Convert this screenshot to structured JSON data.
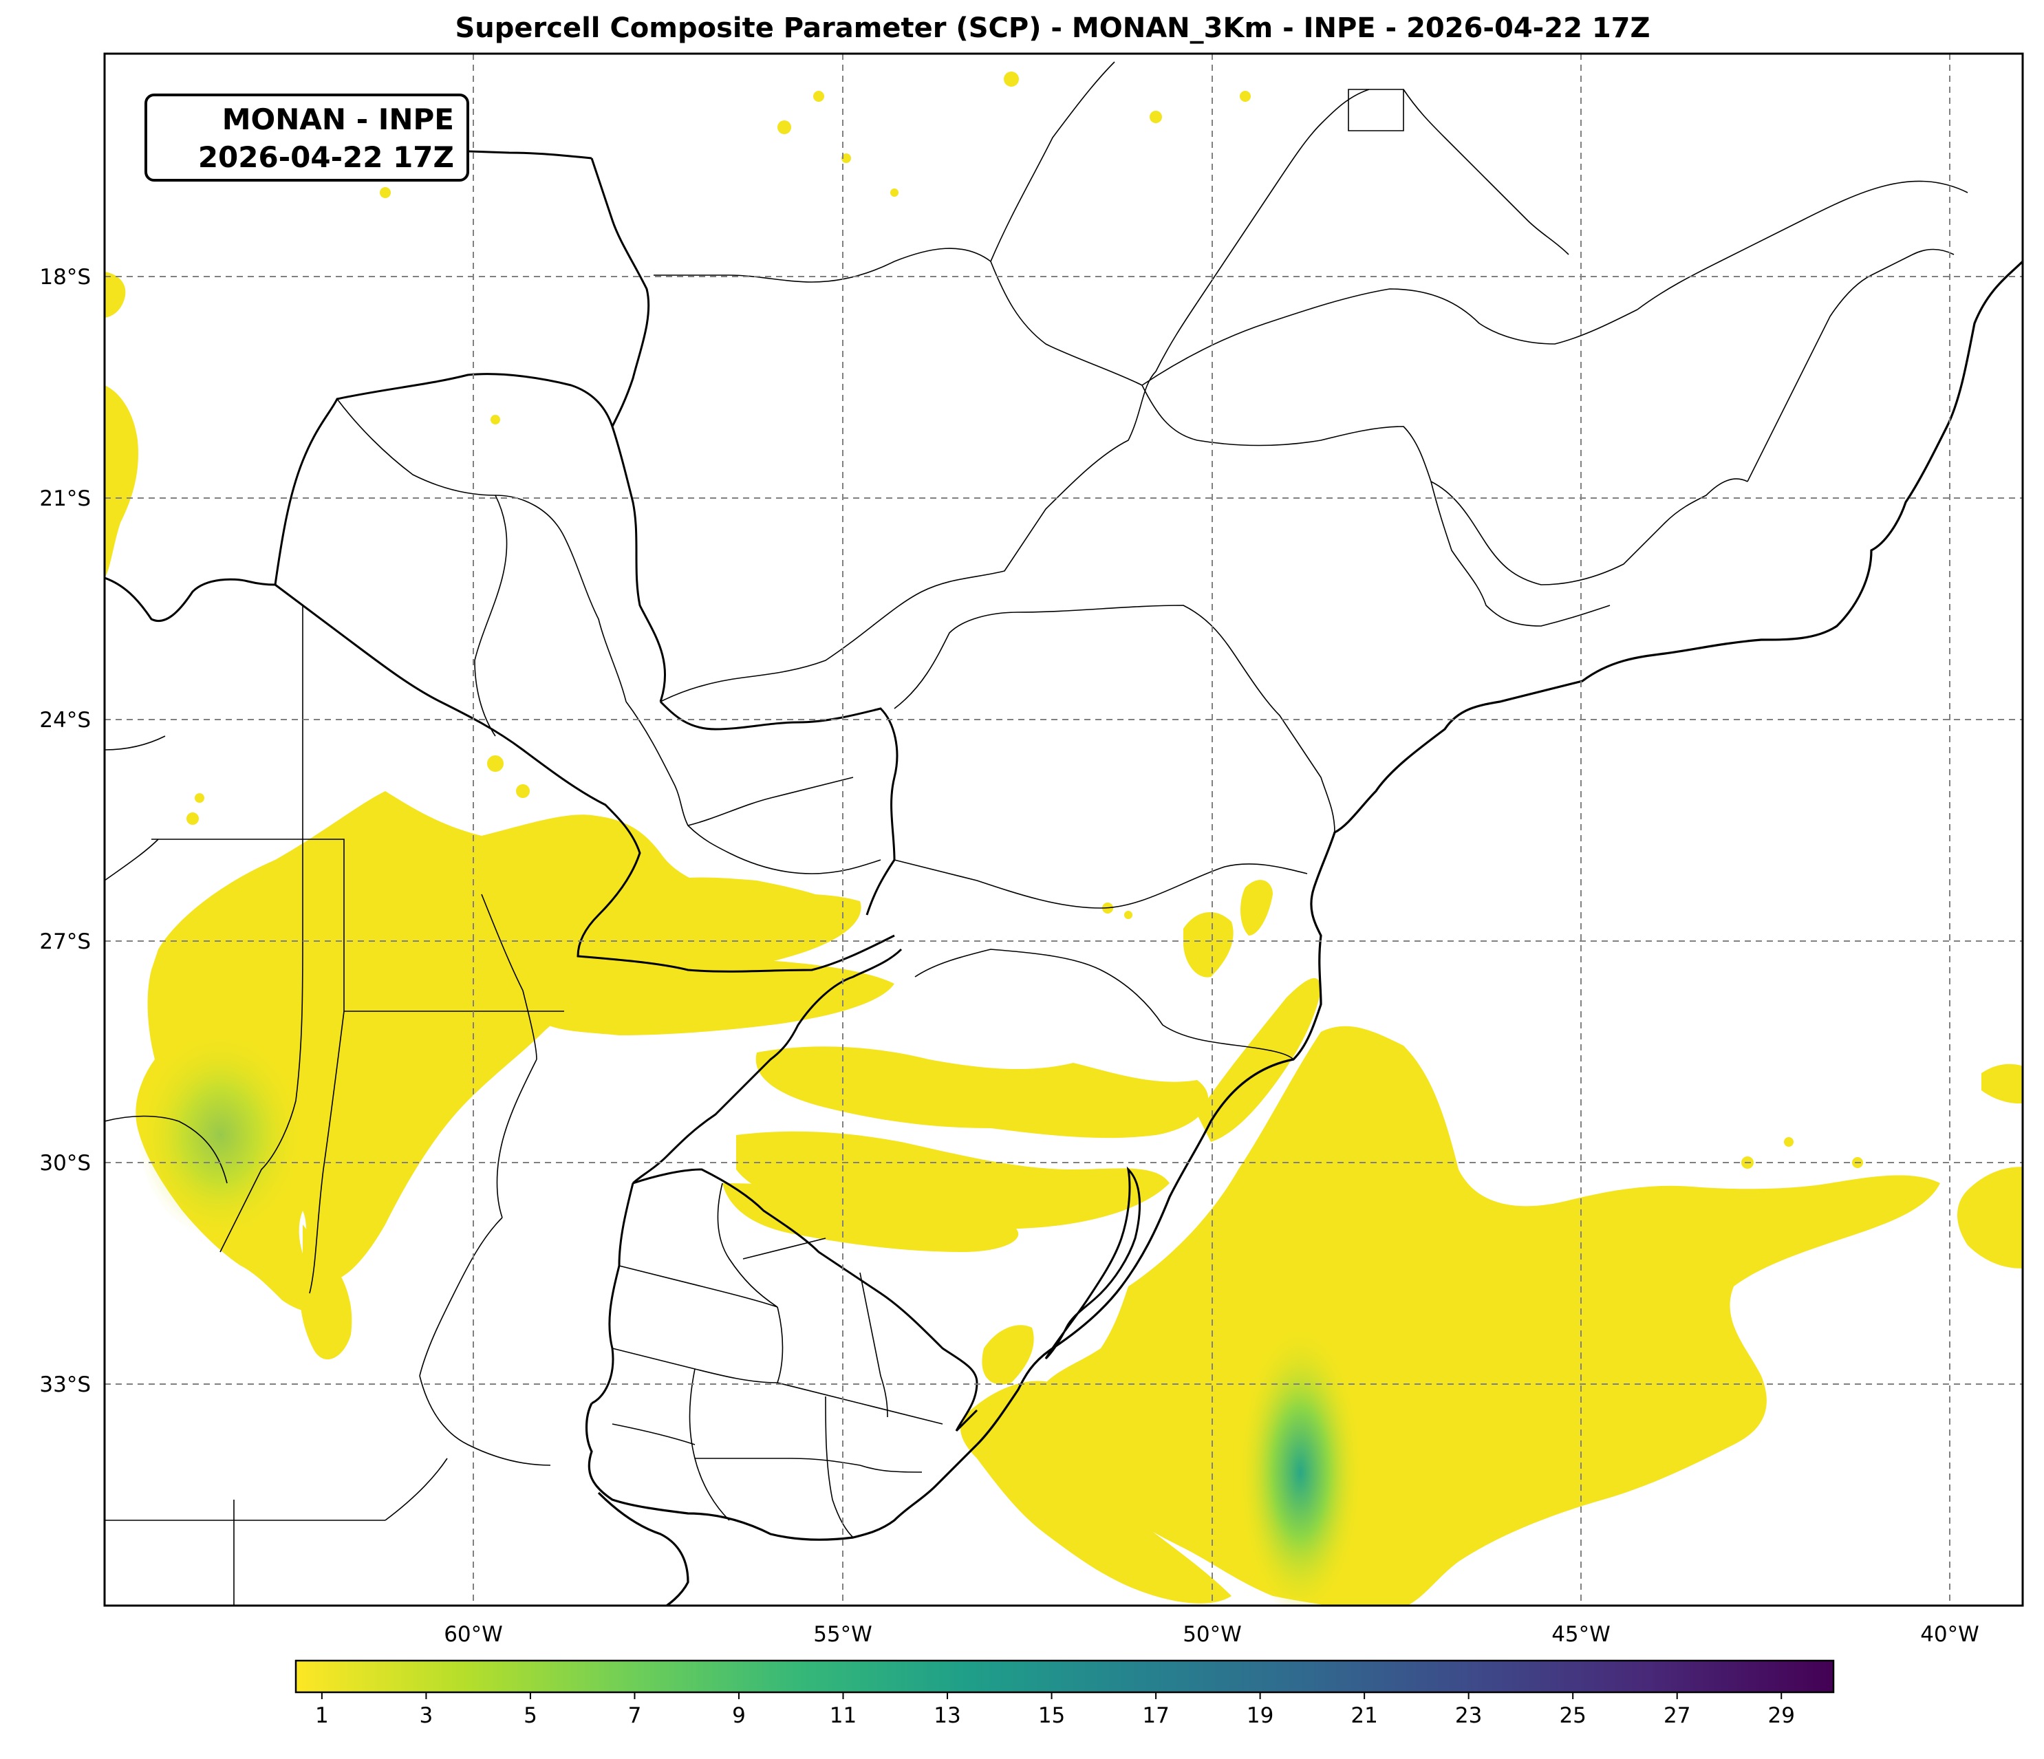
{
  "title": "Supercell Composite Parameter (SCP) - MONAN_3Km - INPE - 2026-04-22 17Z",
  "info_box": {
    "line1": "MONAN - INPE",
    "line2": "2026-04-22 17Z"
  },
  "map": {
    "lon_range": [
      -65,
      -39
    ],
    "lat_range": [
      -36.5,
      -15.5
    ],
    "lat_labels": [
      "18°S",
      "21°S",
      "24°S",
      "27°S",
      "30°S",
      "33°S"
    ],
    "lon_labels": [
      "60°W",
      "55°W",
      "50°W",
      "45°W",
      "40°W"
    ],
    "gridlines": "dashed gray"
  },
  "colorbar": {
    "colormap": "viridis (reversed)",
    "min": 0.5,
    "max": 30,
    "ticks": [
      "1",
      "3",
      "5",
      "7",
      "9",
      "11",
      "13",
      "15",
      "17",
      "19",
      "21",
      "23",
      "25",
      "27",
      "29"
    ],
    "colors": [
      "#fde725",
      "#b5de2b",
      "#6ece58",
      "#35b779",
      "#1f9e89",
      "#26828e",
      "#31688e",
      "#3e4989",
      "#482878",
      "#440154"
    ]
  }
}
